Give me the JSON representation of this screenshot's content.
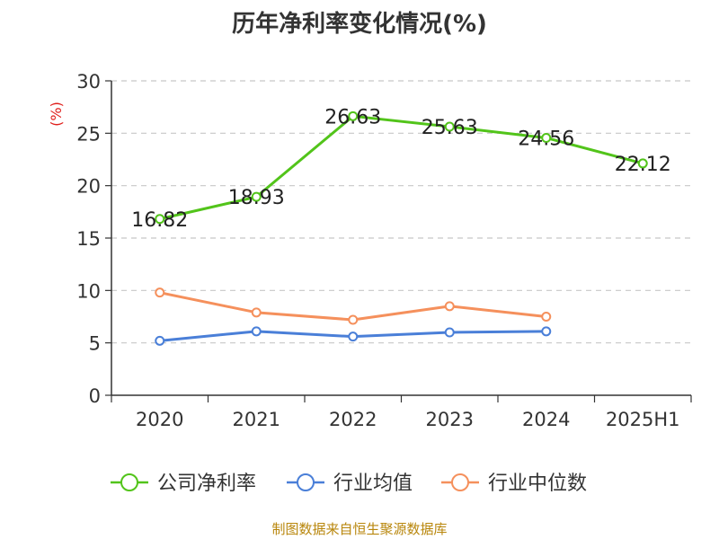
{
  "chart_data": {
    "type": "line",
    "title": "历年净利率变化情况(%)",
    "ylabel": "(%)",
    "xlabel": "",
    "categories": [
      "2020",
      "2021",
      "2022",
      "2023",
      "2024",
      "2025H1"
    ],
    "ylim": [
      0,
      30
    ],
    "yticks": [
      0,
      5,
      10,
      15,
      20,
      25,
      30
    ],
    "grid": true,
    "legend_position": "bottom",
    "series": [
      {
        "name": "公司净利率",
        "color": "#52c41a",
        "values": [
          16.82,
          18.93,
          26.63,
          25.63,
          24.56,
          22.12
        ],
        "labels": [
          "16.82",
          "18.93",
          "26.63",
          "25.63",
          "24.56",
          "22.12"
        ]
      },
      {
        "name": "行业均值",
        "color": "#4a7fd8",
        "values": [
          5.2,
          6.1,
          5.6,
          6.0,
          6.1,
          null
        ]
      },
      {
        "name": "行业中位数",
        "color": "#f5905c",
        "values": [
          9.8,
          7.9,
          7.2,
          8.5,
          7.5,
          null
        ]
      }
    ]
  },
  "footer": {
    "source": "制图数据来自恒生聚源数据库"
  }
}
